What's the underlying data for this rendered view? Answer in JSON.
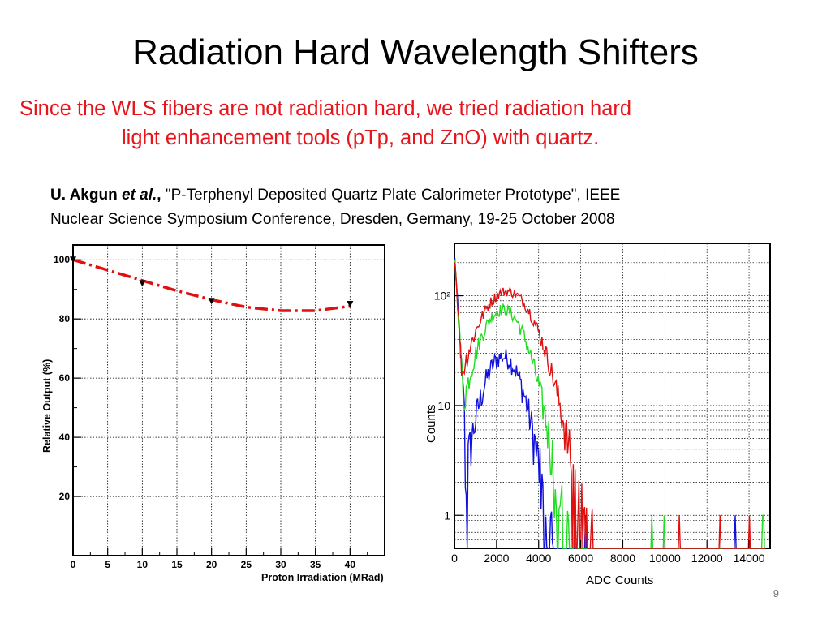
{
  "slide": {
    "title": "Radiation Hard Wavelength Shifters",
    "subtitle_line1": "Since the WLS fibers are not radiation hard, we tried radiation hard",
    "subtitle_line2": "light enhancement tools (pTp, and ZnO)  with quartz.",
    "reference": {
      "author": "U. Akgun",
      "etal": "et al.",
      "sep": ",",
      "rest_line1": " \"P-Terphenyl Deposited Quartz Plate Calorimeter Prototype\",  IEEE",
      "line2": "Nuclear Science Symposium Conference, Dresden, Germany, 19-25 October 2008"
    },
    "page_number": "9"
  },
  "colors": {
    "subtitle": "#e8141c",
    "red": "#e01010",
    "green": "#22dd22",
    "blue": "#1010dd"
  },
  "chart_data": [
    {
      "type": "line",
      "xlabel": "Proton Irradiation (MRad)",
      "ylabel": "Relative Output (%)",
      "xlim": [
        0,
        45
      ],
      "ylim": [
        0,
        105
      ],
      "x_ticks": [
        "0",
        "5",
        "10",
        "15",
        "20",
        "25",
        "30",
        "35",
        "40"
      ],
      "y_ticks": [
        "20",
        "40",
        "60",
        "80",
        "100"
      ],
      "grid": true,
      "series": [
        {
          "points": [
            [
              0,
              100
            ],
            [
              10,
              92
            ],
            [
              20,
              86
            ],
            [
              40,
              85
            ]
          ],
          "marker": "triangle-down"
        },
        {
          "fit": [
            [
              0,
              100
            ],
            [
              5,
              96.5
            ],
            [
              10,
              93
            ],
            [
              15,
              89.5
            ],
            [
              20,
              86.5
            ],
            [
              25,
              84
            ],
            [
              30,
              82.8
            ],
            [
              35,
              82.8
            ],
            [
              40,
              84.3
            ]
          ],
          "style": "dash-dot"
        }
      ]
    },
    {
      "type": "line",
      "xlabel": "ADC Counts",
      "ylabel": "Counts",
      "yscale": "log",
      "xlim": [
        0,
        15000
      ],
      "ylim": [
        0.5,
        300
      ],
      "x_ticks": [
        "0",
        "2000",
        "4000",
        "6000",
        "8000",
        "10000",
        "12000",
        "14000"
      ],
      "y_ticks": [
        "1",
        "10",
        "10²"
      ],
      "grid": true,
      "series": [
        {
          "color": "red",
          "peak_x": 2500,
          "peak_y": 110,
          "sigma": 1150,
          "tail_to": 7200
        },
        {
          "color": "green",
          "peak_x": 2300,
          "peak_y": 75,
          "sigma": 950,
          "tail_to": 5900
        },
        {
          "color": "blue",
          "peak_x": 2300,
          "peak_y": 28,
          "sigma": 800,
          "tail_to": 4700
        }
      ]
    }
  ]
}
